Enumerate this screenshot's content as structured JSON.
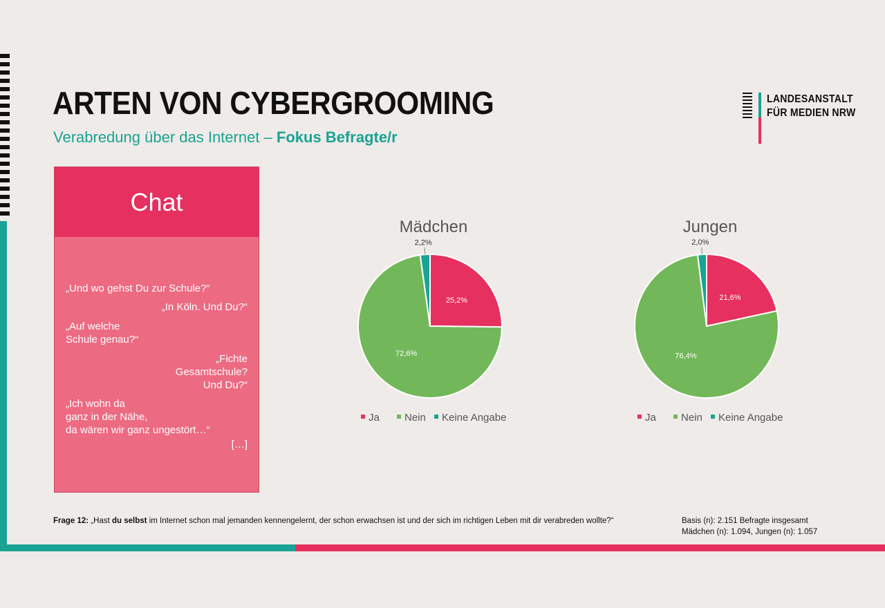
{
  "header": {
    "title": "ARTEN VON CYBERGROOMING",
    "subtitle_regular": "Verabredung über das Internet – ",
    "subtitle_bold": "Fokus Befragte/r"
  },
  "logo": {
    "line1": "LANDESANSTALT",
    "line2": "FÜR MEDIEN NRW"
  },
  "chat": {
    "heading": "Chat",
    "lines": [
      "„Und wo gehst Du zur Schule?“",
      "„In Köln. Und Du?“",
      "„Auf welche",
      "Schule genau?“",
      "„Fichte",
      "Gesamtschule?",
      "Und Du?“",
      "„Ich wohn da",
      "ganz in der Nähe,",
      "da wären wir ganz ungestört…“",
      "[…]"
    ]
  },
  "colors": {
    "ja": "#e6305f",
    "nein": "#72b85a",
    "keine_angabe": "#1aa394",
    "teal": "#1aa394",
    "pink": "#e6305f"
  },
  "chart_data": [
    {
      "type": "pie",
      "title": "Mädchen",
      "labels": [
        "Ja",
        "Nein",
        "Keine Angabe"
      ],
      "values": [
        25.2,
        72.6,
        2.2
      ],
      "value_labels": [
        "25,2%",
        "72,6%",
        "2,2%"
      ],
      "legend": [
        "Ja",
        "Nein",
        "Keine Angabe"
      ]
    },
    {
      "type": "pie",
      "title": "Jungen",
      "labels": [
        "Ja",
        "Nein",
        "Keine Angabe"
      ],
      "values": [
        21.6,
        76.4,
        2.0
      ],
      "value_labels": [
        "21,6%",
        "76,4%",
        "2,0%"
      ],
      "legend": [
        "Ja",
        "Nein",
        "Keine Angabe"
      ]
    }
  ],
  "footer": {
    "question_label": "Frage 12:",
    "question_pre": " „Hast ",
    "question_bold": "du selbst",
    "question_post": " im Internet schon mal jemanden kennengelernt, der schon erwachsen ist und der sich im richtigen Leben mit dir verabreden wollte?“",
    "basis_line1": "Basis (n): 2.151 Befragte insgesamt",
    "basis_line2": "Mädchen (n): 1.094, Jungen (n): 1.057"
  }
}
